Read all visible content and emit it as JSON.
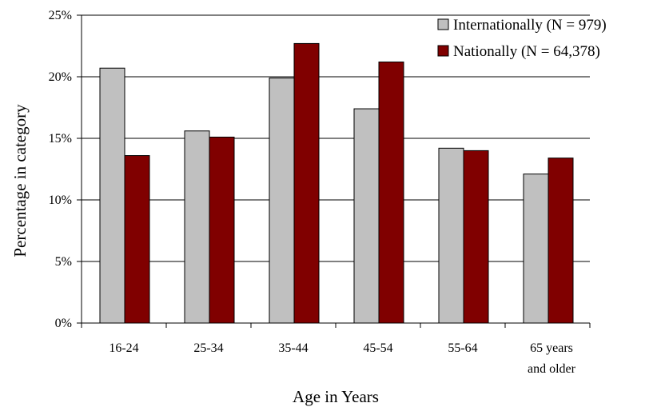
{
  "chart_data": {
    "type": "bar",
    "title": "",
    "xlabel": "Age in Years",
    "ylabel": "Percentage in category",
    "categories": [
      [
        "16-24"
      ],
      [
        "25-34"
      ],
      [
        "35-44"
      ],
      [
        "45-54"
      ],
      [
        "55-64"
      ],
      [
        "65 years",
        "and older"
      ]
    ],
    "series": [
      {
        "name": "Internationally (N = 979)",
        "values": [
          20.7,
          15.6,
          19.9,
          17.4,
          14.2,
          12.1
        ]
      },
      {
        "name": "Nationally (N = 64,378)",
        "values": [
          13.6,
          15.1,
          22.7,
          21.2,
          14.0,
          13.4
        ]
      }
    ],
    "ylim": [
      0,
      25
    ],
    "yticks": [
      "0%",
      "5%",
      "10%",
      "15%",
      "20%",
      "25%"
    ],
    "grid": true,
    "legend_position": "top-right",
    "colors": {
      "Internationally": "#c0c0c0",
      "Nationally": "#800000",
      "axis": "#000000"
    }
  }
}
